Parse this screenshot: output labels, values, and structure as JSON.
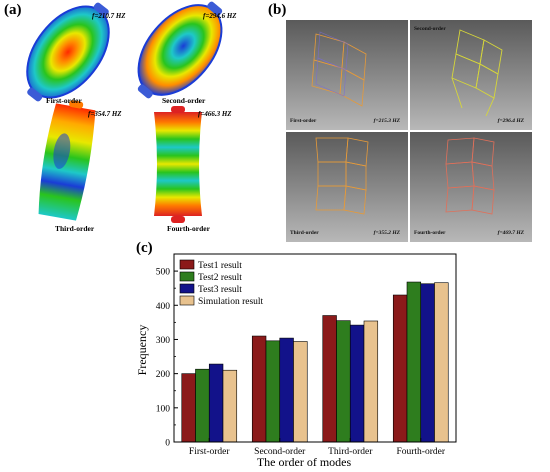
{
  "panel_a": {
    "label": "(a)",
    "modes": [
      {
        "freq": "f=210.7 HZ",
        "name": "First-order"
      },
      {
        "freq": "f=294.6 HZ",
        "name": "Second-order"
      },
      {
        "freq": "f=354.7 HZ",
        "name": "Third-order"
      },
      {
        "freq": "f=466.3 HZ",
        "name": "Fourth-order"
      }
    ]
  },
  "panel_b": {
    "label": "(b)",
    "modes": [
      {
        "name": "First-order",
        "freq": "f=215.3 HZ"
      },
      {
        "name": "Second-order",
        "freq": "f=296.4 HZ"
      },
      {
        "name": "Third-order",
        "freq": "f=355.2 HZ"
      },
      {
        "name": "Fourth-order",
        "freq": "f=469.7 HZ"
      }
    ]
  },
  "panel_c": {
    "label": "(c)"
  },
  "chart_data": {
    "type": "bar",
    "categories": [
      "First-order",
      "Second-order",
      "Third-order",
      "Fourth-order"
    ],
    "series": [
      {
        "name": "Test1 result",
        "color": "#8b1a1a",
        "values": [
          200,
          310,
          370,
          430
        ]
      },
      {
        "name": "Test2 result",
        "color": "#2e7d1e",
        "values": [
          213,
          296,
          355,
          468
        ]
      },
      {
        "name": "Test3 result",
        "color": "#12128a",
        "values": [
          228,
          304,
          342,
          463
        ]
      },
      {
        "name": "Simulation result",
        "color": "#e8c28e",
        "values": [
          210,
          294,
          354,
          466
        ]
      }
    ],
    "xlabel": "The order of modes",
    "ylabel": "Frequency",
    "ylim": [
      0,
      550
    ],
    "yticks": [
      0,
      100,
      200,
      300,
      400,
      500
    ],
    "legend": "top-left",
    "grid": false
  }
}
